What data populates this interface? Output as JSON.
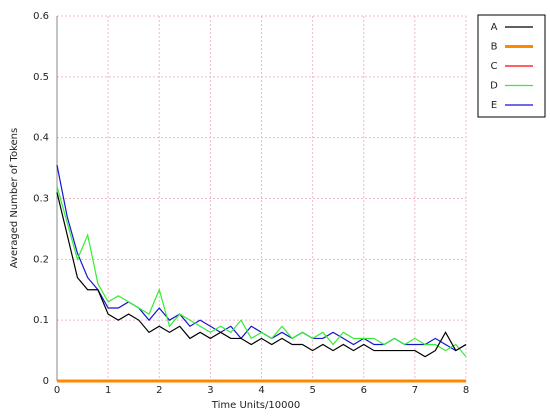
{
  "chart_data": {
    "type": "line",
    "x_label": "Time Units/10000",
    "y_label": "Averaged Number of Tokens",
    "x": [
      0,
      0.2,
      0.4,
      0.6,
      0.8,
      1.0,
      1.2,
      1.4,
      1.6,
      1.8,
      2.0,
      2.2,
      2.4,
      2.6,
      2.8,
      3.0,
      3.2,
      3.4,
      3.6,
      3.8,
      4.0,
      4.2,
      4.4,
      4.6,
      4.8,
      5.0,
      5.2,
      5.4,
      5.6,
      5.8,
      6.0,
      6.2,
      6.4,
      6.6,
      6.8,
      7.0,
      7.2,
      7.4,
      7.6,
      7.8,
      8.0
    ],
    "series": [
      {
        "name": "A",
        "color": "#000000",
        "values": [
          0.31,
          0.24,
          0.17,
          0.15,
          0.15,
          0.11,
          0.1,
          0.11,
          0.1,
          0.08,
          0.09,
          0.08,
          0.09,
          0.07,
          0.08,
          0.07,
          0.08,
          0.07,
          0.07,
          0.06,
          0.07,
          0.06,
          0.07,
          0.06,
          0.06,
          0.05,
          0.06,
          0.05,
          0.06,
          0.05,
          0.06,
          0.05,
          0.05,
          0.05,
          0.05,
          0.05,
          0.04,
          0.05,
          0.08,
          0.05,
          0.06
        ]
      },
      {
        "name": "B",
        "color": "#ff8800",
        "values": [
          0,
          0,
          0,
          0,
          0,
          0,
          0,
          0,
          0,
          0,
          0,
          0,
          0,
          0,
          0,
          0,
          0,
          0,
          0,
          0,
          0,
          0,
          0,
          0,
          0,
          0,
          0,
          0,
          0,
          0,
          0,
          0,
          0,
          0,
          0,
          0,
          0,
          0,
          0,
          0,
          0
        ]
      },
      {
        "name": "C",
        "color": "#ff0000",
        "values": [
          0,
          0,
          0,
          0,
          0,
          0,
          0,
          0,
          0,
          0,
          0,
          0,
          0,
          0,
          0,
          0,
          0,
          0,
          0,
          0,
          0,
          0,
          0,
          0,
          0,
          0,
          0,
          0,
          0,
          0,
          0,
          0,
          0,
          0,
          0,
          0,
          0,
          0,
          0,
          0,
          0
        ]
      },
      {
        "name": "D",
        "color": "#33ee33",
        "values": [
          0.32,
          0.26,
          0.2,
          0.24,
          0.16,
          0.13,
          0.14,
          0.13,
          0.12,
          0.11,
          0.15,
          0.09,
          0.11,
          0.1,
          0.09,
          0.08,
          0.09,
          0.08,
          0.1,
          0.07,
          0.08,
          0.07,
          0.09,
          0.07,
          0.08,
          0.07,
          0.08,
          0.06,
          0.08,
          0.07,
          0.07,
          0.07,
          0.06,
          0.07,
          0.06,
          0.07,
          0.06,
          0.06,
          0.05,
          0.06,
          0.04
        ]
      },
      {
        "name": "E",
        "color": "#1515d0",
        "values": [
          0.355,
          0.27,
          0.21,
          0.17,
          0.15,
          0.12,
          0.12,
          0.13,
          0.12,
          0.1,
          0.12,
          0.1,
          0.11,
          0.09,
          0.1,
          0.09,
          0.08,
          0.09,
          0.07,
          0.09,
          0.08,
          0.07,
          0.08,
          0.07,
          0.08,
          0.07,
          0.07,
          0.08,
          0.07,
          0.06,
          0.07,
          0.06,
          0.06,
          0.07,
          0.06,
          0.06,
          0.06,
          0.07,
          0.06,
          0.05,
          0.06
        ]
      }
    ],
    "xlim": [
      0,
      8
    ],
    "xticks": [
      0,
      1,
      2,
      3,
      4,
      5,
      6,
      7,
      8
    ],
    "ylim": [
      0,
      0.6
    ],
    "yticks": [
      0,
      0.1,
      0.2,
      0.3,
      0.4,
      0.5,
      0.6
    ],
    "grid": true,
    "legend": "right"
  }
}
